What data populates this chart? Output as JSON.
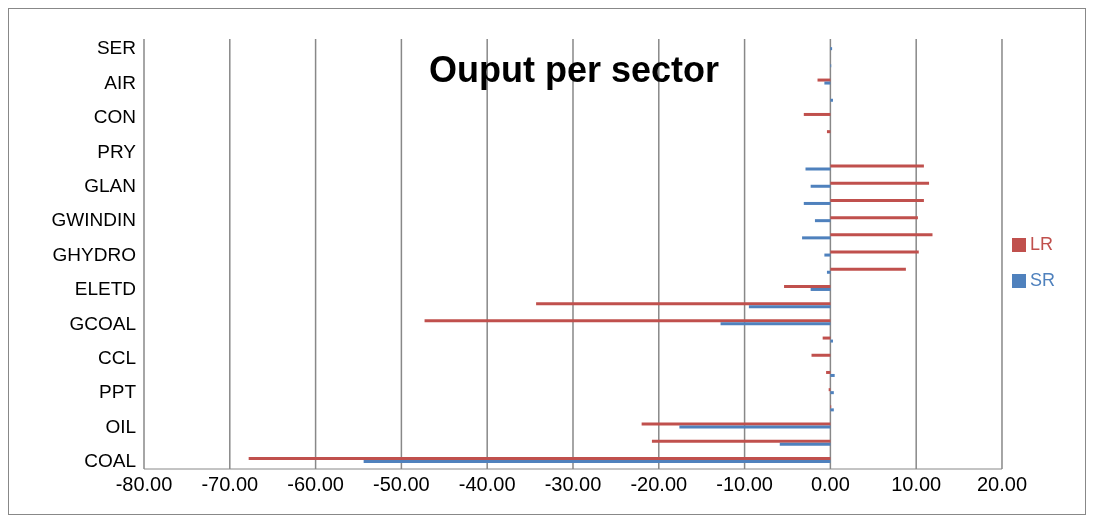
{
  "chart_data": {
    "type": "bar",
    "orientation": "horizontal",
    "title": "Ouput per sector",
    "categories": [
      "SER",
      null,
      "AIR",
      null,
      "CON",
      null,
      "PRY",
      null,
      "GLAN",
      null,
      "GWINDIN",
      null,
      "GHYDRO",
      null,
      "ELETD",
      null,
      "GCOAL",
      null,
      "CCL",
      null,
      "PPT",
      null,
      "OIL",
      null,
      "COAL"
    ],
    "series": [
      {
        "name": "LR",
        "color": "#c0504d",
        "values": [
          0,
          null,
          -1.5,
          0,
          -3.1,
          -0.4,
          null,
          10.9,
          11.5,
          10.9,
          10.2,
          11.9,
          10.3,
          8.8,
          -5.4,
          -34.3,
          -47.3,
          -0.9,
          -2.2,
          -0.5,
          -0.2,
          0.1,
          -22.0,
          -20.8,
          -67.8
        ]
      },
      {
        "name": "SR",
        "color": "#4f81bd",
        "values": [
          0.2,
          0.1,
          -0.7,
          0.3,
          null,
          0,
          0,
          -2.9,
          -2.3,
          -3.1,
          -1.8,
          -3.3,
          -0.7,
          -0.4,
          -2.3,
          -9.5,
          -12.8,
          0.3,
          0,
          0.5,
          0.4,
          0.4,
          -17.6,
          -5.9,
          -54.4
        ]
      }
    ],
    "xlim": [
      -80,
      20
    ],
    "xticks": [
      {
        "value": -80,
        "label": "-80.00"
      },
      {
        "value": -70,
        "label": "-70.00"
      },
      {
        "value": -60,
        "label": "-60.00"
      },
      {
        "value": -50,
        "label": "-50.00"
      },
      {
        "value": -40,
        "label": "-40.00"
      },
      {
        "value": -30,
        "label": "-30.00"
      },
      {
        "value": -20,
        "label": "-20.00"
      },
      {
        "value": -10,
        "label": "-10.00"
      },
      {
        "value": 0,
        "label": "0.00"
      },
      {
        "value": 10,
        "label": "10.00"
      },
      {
        "value": 20,
        "label": "20.00"
      }
    ],
    "grid": "x",
    "legend": "right"
  }
}
